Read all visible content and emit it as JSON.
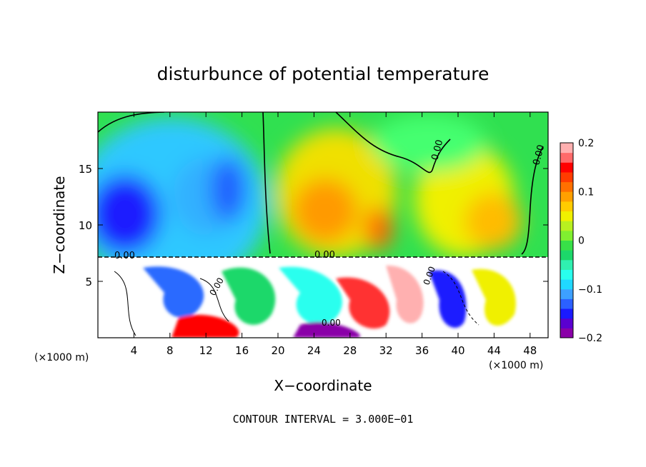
{
  "chart_data": {
    "type": "heatmap",
    "title": "disturbunce of potential temperature",
    "xlabel": "X−coordinate",
    "ylabel": "Z−coordinate",
    "x_unit": "(×1000 m)",
    "x_unit_right": "(×1000 m)",
    "xlim": [
      0,
      50
    ],
    "ylim": [
      0,
      20
    ],
    "x_ticks": [
      "4",
      "8",
      "12",
      "16",
      "20",
      "24",
      "28",
      "32",
      "36",
      "40",
      "44",
      "48"
    ],
    "x_tick_values": [
      4,
      8,
      12,
      16,
      20,
      24,
      28,
      32,
      36,
      40,
      44,
      48
    ],
    "y_ticks": [
      "5",
      "10",
      "15"
    ],
    "y_tick_values": [
      5,
      10,
      15
    ],
    "colorbar": {
      "ticks": [
        "0.2",
        "0.1",
        "0",
        "−0.1",
        "−0.2"
      ],
      "tick_values": [
        0.2,
        0.1,
        0,
        -0.1,
        -0.2
      ],
      "range": [
        -0.2,
        0.2
      ],
      "colors": [
        "#8a00a8",
        "#5a00d0",
        "#1a1aff",
        "#2b60ff",
        "#3da0ff",
        "#20d8ff",
        "#29ffee",
        "#30f0b0",
        "#1cd86a",
        "#38e048",
        "#80f030",
        "#b8f020",
        "#f0f000",
        "#ffcc00",
        "#ffa000",
        "#ff7000",
        "#ff3c00",
        "#ff0000",
        "#ff6a6a",
        "#ffb0b0"
      ]
    },
    "contour_labels": [
      "0.00",
      "0.00",
      "0.00",
      "0.00",
      "0.00",
      "0.00",
      "0.00"
    ],
    "footer": "CONTOUR INTERVAL = 3.000E−01"
  }
}
